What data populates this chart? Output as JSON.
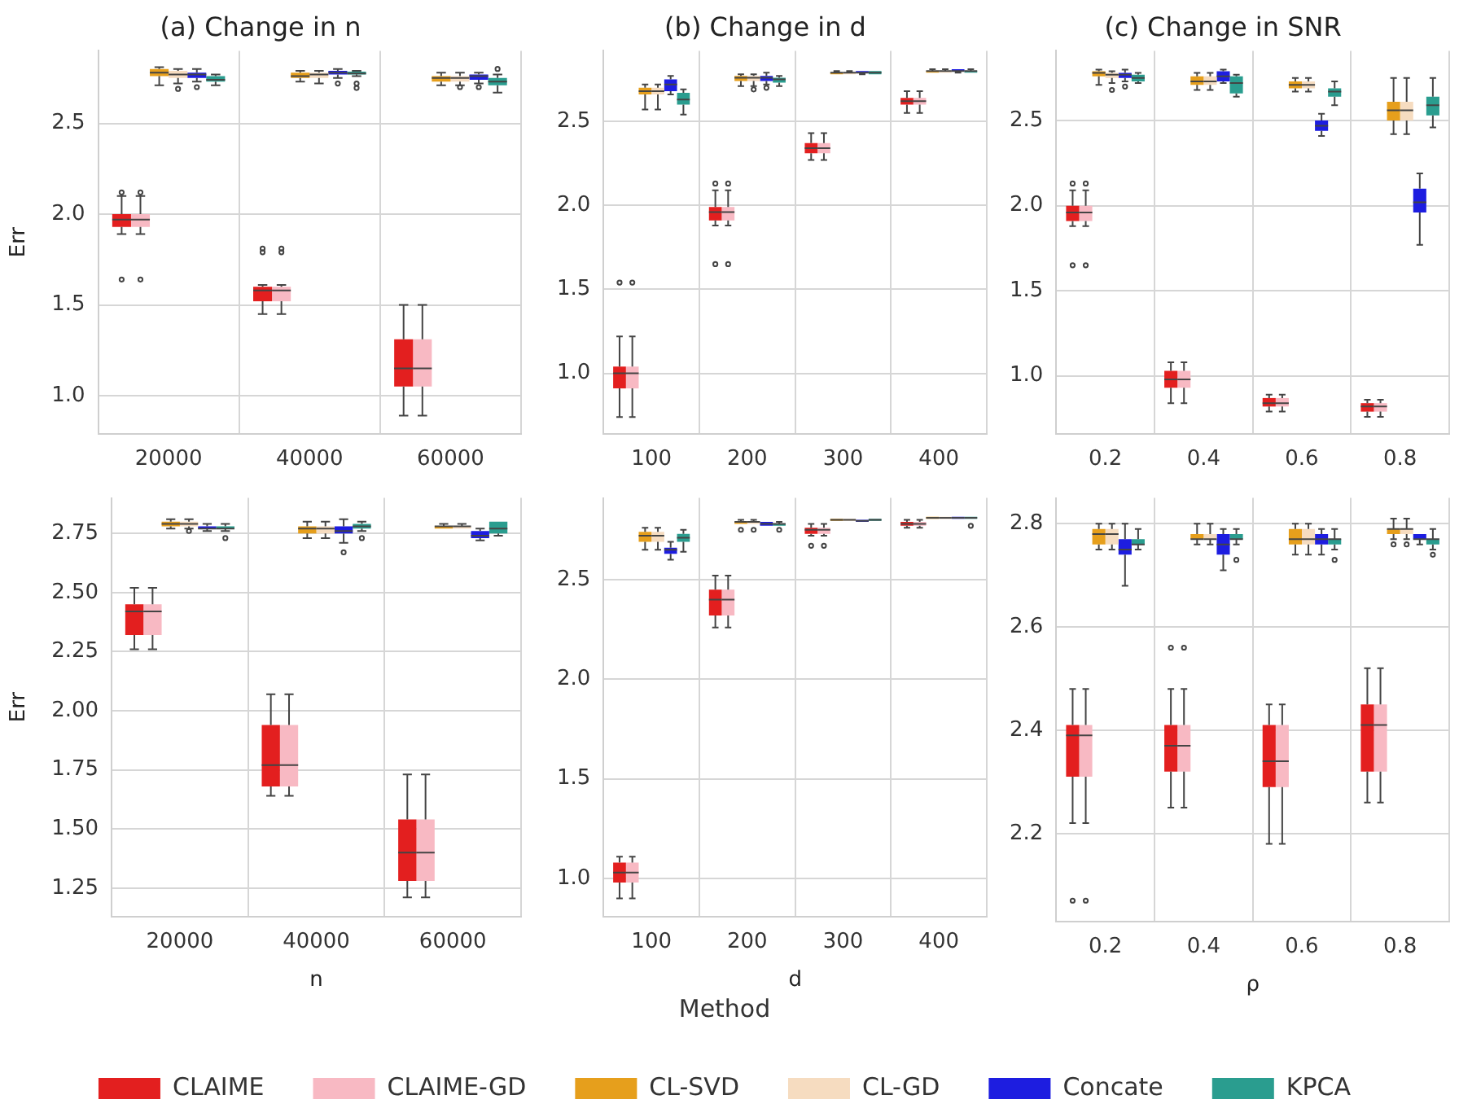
{
  "chart_data": [
    {
      "type": "box",
      "title": "(a) Change in n",
      "ylabel": "Err",
      "categories": [
        "20000",
        "40000",
        "60000"
      ],
      "ylim": [
        0.79,
        2.9
      ],
      "yticks": [
        {
          "value": 1,
          "label": "1.0"
        },
        1.5,
        {
          "value": 2,
          "label": "2.0"
        },
        2.5
      ],
      "grid": true,
      "series": [
        {
          "color": "#e31f1f",
          "boxes": [
            {
              "low": 1.89,
              "q1": 1.93,
              "median": 1.97,
              "q3": 2.0,
              "high": 2.1,
              "outliers": [
                2.12,
                1.64
              ]
            },
            {
              "low": 1.45,
              "q1": 1.52,
              "median": 1.58,
              "q3": 1.6,
              "high": 1.61,
              "outliers": [
                1.81,
                1.79
              ]
            },
            {
              "low": 0.89,
              "q1": 1.05,
              "median": 1.15,
              "q3": 1.31,
              "high": 1.5
            }
          ]
        },
        {
          "color": "#f8b9c3",
          "boxes": [
            {
              "low": 1.89,
              "q1": 1.93,
              "median": 1.97,
              "q3": 2.0,
              "high": 2.1,
              "outliers": [
                2.12,
                1.64
              ]
            },
            {
              "low": 1.45,
              "q1": 1.52,
              "median": 1.58,
              "q3": 1.6,
              "high": 1.61,
              "outliers": [
                1.81,
                1.79
              ]
            },
            {
              "low": 0.89,
              "q1": 1.05,
              "median": 1.15,
              "q3": 1.31,
              "high": 1.5
            }
          ]
        },
        {
          "color": "#e69f1c",
          "boxes": [
            {
              "low": 2.71,
              "q1": 2.76,
              "median": 2.78,
              "q3": 2.8,
              "high": 2.81
            },
            {
              "low": 2.73,
              "q1": 2.75,
              "median": 2.76,
              "q3": 2.78,
              "high": 2.79
            },
            {
              "low": 2.71,
              "q1": 2.73,
              "median": 2.75,
              "q3": 2.76,
              "high": 2.78
            }
          ]
        },
        {
          "color": "#f6dcc0",
          "boxes": [
            {
              "low": 2.72,
              "q1": 2.75,
              "median": 2.77,
              "q3": 2.79,
              "high": 2.8,
              "outliers": [
                2.69
              ]
            },
            {
              "low": 2.72,
              "q1": 2.75,
              "median": 2.77,
              "q3": 2.78,
              "high": 2.79
            },
            {
              "low": 2.71,
              "q1": 2.73,
              "median": 2.75,
              "q3": 2.76,
              "high": 2.78,
              "outliers": [
                2.7
              ]
            }
          ]
        },
        {
          "color": "#1d1de0",
          "boxes": [
            {
              "low": 2.73,
              "q1": 2.75,
              "median": 2.77,
              "q3": 2.78,
              "high": 2.8,
              "outliers": [
                2.7
              ]
            },
            {
              "low": 2.75,
              "q1": 2.77,
              "median": 2.78,
              "q3": 2.79,
              "high": 2.8,
              "outliers": [
                2.72
              ]
            },
            {
              "low": 2.72,
              "q1": 2.74,
              "median": 2.76,
              "q3": 2.77,
              "high": 2.78,
              "outliers": [
                2.7
              ]
            }
          ]
        },
        {
          "color": "#2a9d8f",
          "boxes": [
            {
              "low": 2.71,
              "q1": 2.73,
              "median": 2.74,
              "q3": 2.76,
              "high": 2.77
            },
            {
              "low": 2.76,
              "q1": 2.77,
              "median": 2.775,
              "q3": 2.785,
              "high": 2.79,
              "outliers": [
                2.72,
                2.695
              ]
            },
            {
              "low": 2.67,
              "q1": 2.71,
              "median": 2.73,
              "q3": 2.75,
              "high": 2.77,
              "outliers": [
                2.8
              ]
            }
          ]
        }
      ]
    },
    {
      "type": "box",
      "title": "(b) Change in d",
      "categories": [
        "100",
        "200",
        "300",
        "400"
      ],
      "ylim": [
        0.64,
        2.92
      ],
      "yticks": [
        {
          "value": 1,
          "label": "1.0"
        },
        1.5,
        {
          "value": 2,
          "label": "2.0"
        },
        2.5
      ],
      "grid": true,
      "series": [
        {
          "color": "#e31f1f",
          "boxes": [
            {
              "low": 0.74,
              "q1": 0.91,
              "median": 1.0,
              "q3": 1.04,
              "high": 1.22,
              "outliers": [
                1.54
              ]
            },
            {
              "low": 1.88,
              "q1": 1.91,
              "median": 1.96,
              "q3": 1.99,
              "high": 2.09,
              "outliers": [
                2.13,
                1.65
              ]
            },
            {
              "low": 2.27,
              "q1": 2.31,
              "median": 2.34,
              "q3": 2.37,
              "high": 2.43
            },
            {
              "low": 2.55,
              "q1": 2.6,
              "median": 2.62,
              "q3": 2.64,
              "high": 2.68
            }
          ]
        },
        {
          "color": "#f8b9c3",
          "boxes": [
            {
              "low": 0.74,
              "q1": 0.91,
              "median": 1.0,
              "q3": 1.04,
              "high": 1.22,
              "outliers": [
                1.54
              ]
            },
            {
              "low": 1.88,
              "q1": 1.91,
              "median": 1.96,
              "q3": 1.99,
              "high": 2.09,
              "outliers": [
                2.13,
                1.65
              ]
            },
            {
              "low": 2.27,
              "q1": 2.31,
              "median": 2.34,
              "q3": 2.37,
              "high": 2.43
            },
            {
              "low": 2.55,
              "q1": 2.6,
              "median": 2.62,
              "q3": 2.64,
              "high": 2.68
            }
          ]
        },
        {
          "color": "#e69f1c",
          "boxes": [
            {
              "low": 2.57,
              "q1": 2.66,
              "median": 2.68,
              "q3": 2.7,
              "high": 2.72
            },
            {
              "low": 2.71,
              "q1": 2.74,
              "median": 2.76,
              "q3": 2.77,
              "high": 2.78
            },
            {
              "low": 2.78,
              "q1": 2.78,
              "median": 2.79,
              "q3": 2.79,
              "high": 2.8
            },
            {
              "low": 2.79,
              "q1": 2.79,
              "median": 2.8,
              "q3": 2.8,
              "high": 2.81
            }
          ]
        },
        {
          "color": "#f6dcc0",
          "boxes": [
            {
              "low": 2.57,
              "q1": 2.66,
              "median": 2.68,
              "q3": 2.7,
              "high": 2.72
            },
            {
              "low": 2.71,
              "q1": 2.74,
              "median": 2.76,
              "q3": 2.77,
              "high": 2.78,
              "outliers": [
                2.69
              ]
            },
            {
              "low": 2.78,
              "q1": 2.78,
              "median": 2.79,
              "q3": 2.79,
              "high": 2.8
            },
            {
              "low": 2.79,
              "q1": 2.79,
              "median": 2.8,
              "q3": 2.8,
              "high": 2.81
            }
          ]
        },
        {
          "color": "#1d1de0",
          "boxes": [
            {
              "low": 2.66,
              "q1": 2.68,
              "median": 2.72,
              "q3": 2.75,
              "high": 2.77
            },
            {
              "low": 2.72,
              "q1": 2.74,
              "median": 2.76,
              "q3": 2.77,
              "high": 2.79,
              "outliers": [
                2.7
              ]
            },
            {
              "low": 2.78,
              "q1": 2.79,
              "median": 2.79,
              "q3": 2.8,
              "high": 2.8
            },
            {
              "low": 2.79,
              "q1": 2.8,
              "median": 2.8,
              "q3": 2.81,
              "high": 2.81
            }
          ]
        },
        {
          "color": "#2a9d8f",
          "boxes": [
            {
              "low": 2.54,
              "q1": 2.6,
              "median": 2.63,
              "q3": 2.67,
              "high": 2.69
            },
            {
              "low": 2.71,
              "q1": 2.73,
              "median": 2.75,
              "q3": 2.76,
              "high": 2.77
            },
            {
              "low": 2.78,
              "q1": 2.78,
              "median": 2.79,
              "q3": 2.8,
              "high": 2.8
            },
            {
              "low": 2.79,
              "q1": 2.79,
              "median": 2.8,
              "q3": 2.8,
              "high": 2.81
            }
          ]
        }
      ]
    },
    {
      "type": "box",
      "title": "(c) Change in SNR",
      "categories": [
        "0.2",
        "0.4",
        "0.6",
        "0.8"
      ],
      "ylim": [
        0.66,
        2.91
      ],
      "yticks": [
        {
          "value": 1,
          "label": "1.0"
        },
        1.5,
        {
          "value": 2,
          "label": "2.0"
        },
        2.5
      ],
      "grid": true,
      "series": [
        {
          "color": "#e31f1f",
          "boxes": [
            {
              "low": 1.88,
              "q1": 1.91,
              "median": 1.96,
              "q3": 2.0,
              "high": 2.09,
              "outliers": [
                2.13,
                1.65
              ]
            },
            {
              "low": 0.84,
              "q1": 0.93,
              "median": 0.98,
              "q3": 1.03,
              "high": 1.08
            },
            {
              "low": 0.79,
              "q1": 0.82,
              "median": 0.84,
              "q3": 0.87,
              "high": 0.89
            },
            {
              "low": 0.76,
              "q1": 0.79,
              "median": 0.82,
              "q3": 0.84,
              "high": 0.86
            }
          ]
        },
        {
          "color": "#f8b9c3",
          "boxes": [
            {
              "low": 1.88,
              "q1": 1.91,
              "median": 1.96,
              "q3": 2.0,
              "high": 2.09,
              "outliers": [
                2.13,
                1.65
              ]
            },
            {
              "low": 0.84,
              "q1": 0.93,
              "median": 0.98,
              "q3": 1.03,
              "high": 1.08
            },
            {
              "low": 0.79,
              "q1": 0.82,
              "median": 0.84,
              "q3": 0.87,
              "high": 0.89
            },
            {
              "low": 0.76,
              "q1": 0.79,
              "median": 0.82,
              "q3": 0.84,
              "high": 0.86
            }
          ]
        },
        {
          "color": "#e69f1c",
          "boxes": [
            {
              "low": 2.71,
              "q1": 2.76,
              "median": 2.78,
              "q3": 2.79,
              "high": 2.8
            },
            {
              "low": 2.68,
              "q1": 2.71,
              "median": 2.73,
              "q3": 2.76,
              "high": 2.78
            },
            {
              "low": 2.67,
              "q1": 2.69,
              "median": 2.71,
              "q3": 2.73,
              "high": 2.75
            },
            {
              "low": 2.42,
              "q1": 2.5,
              "median": 2.56,
              "q3": 2.61,
              "high": 2.75
            }
          ]
        },
        {
          "color": "#f6dcc0",
          "boxes": [
            {
              "low": 2.72,
              "q1": 2.75,
              "median": 2.77,
              "q3": 2.78,
              "high": 2.79,
              "outliers": [
                2.68
              ]
            },
            {
              "low": 2.68,
              "q1": 2.71,
              "median": 2.73,
              "q3": 2.76,
              "high": 2.78
            },
            {
              "low": 2.67,
              "q1": 2.69,
              "median": 2.71,
              "q3": 2.73,
              "high": 2.75
            },
            {
              "low": 2.42,
              "q1": 2.5,
              "median": 2.56,
              "q3": 2.61,
              "high": 2.75
            }
          ]
        },
        {
          "color": "#1d1de0",
          "boxes": [
            {
              "low": 2.73,
              "q1": 2.75,
              "median": 2.77,
              "q3": 2.78,
              "high": 2.8,
              "outliers": [
                2.7
              ]
            },
            {
              "low": 2.72,
              "q1": 2.73,
              "median": 2.76,
              "q3": 2.79,
              "high": 2.8
            },
            {
              "low": 2.41,
              "q1": 2.44,
              "median": 2.47,
              "q3": 2.5,
              "high": 2.54
            },
            {
              "low": 1.77,
              "q1": 1.96,
              "median": 2.02,
              "q3": 2.1,
              "high": 2.19
            }
          ]
        },
        {
          "color": "#2a9d8f",
          "boxes": [
            {
              "low": 2.72,
              "q1": 2.73,
              "median": 2.75,
              "q3": 2.77,
              "high": 2.78
            },
            {
              "low": 2.64,
              "q1": 2.66,
              "median": 2.72,
              "q3": 2.76,
              "high": 2.77
            },
            {
              "low": 2.59,
              "q1": 2.64,
              "median": 2.67,
              "q3": 2.69,
              "high": 2.73
            },
            {
              "low": 2.46,
              "q1": 2.53,
              "median": 2.59,
              "q3": 2.64,
              "high": 2.75
            }
          ]
        }
      ]
    },
    {
      "type": "box",
      "xlabel": "n",
      "ylabel": "Err",
      "categories": [
        "20000",
        "40000",
        "60000"
      ],
      "ylim": [
        1.13,
        2.9
      ],
      "yticks": [
        1.25,
        {
          "value": 1.5,
          "label": "1.50"
        },
        1.75,
        {
          "value": 2,
          "label": "2.00"
        },
        2.25,
        {
          "value": 2.5,
          "label": "2.50"
        },
        2.75
      ],
      "grid": true,
      "series": [
        {
          "color": "#e31f1f",
          "boxes": [
            {
              "low": 2.26,
              "q1": 2.32,
              "median": 2.42,
              "q3": 2.45,
              "high": 2.52
            },
            {
              "low": 1.64,
              "q1": 1.68,
              "median": 1.77,
              "q3": 1.94,
              "high": 2.07
            },
            {
              "low": 1.21,
              "q1": 1.28,
              "median": 1.4,
              "q3": 1.54,
              "high": 1.73
            }
          ]
        },
        {
          "color": "#f8b9c3",
          "boxes": [
            {
              "low": 2.26,
              "q1": 2.32,
              "median": 2.42,
              "q3": 2.45,
              "high": 2.52
            },
            {
              "low": 1.64,
              "q1": 1.68,
              "median": 1.77,
              "q3": 1.94,
              "high": 2.07
            },
            {
              "low": 1.21,
              "q1": 1.28,
              "median": 1.4,
              "q3": 1.54,
              "high": 1.73
            }
          ]
        },
        {
          "color": "#e69f1c",
          "boxes": [
            {
              "low": 2.77,
              "q1": 2.78,
              "median": 2.79,
              "q3": 2.8,
              "high": 2.81
            },
            {
              "low": 2.73,
              "q1": 2.75,
              "median": 2.77,
              "q3": 2.78,
              "high": 2.8
            },
            {
              "low": 2.77,
              "q1": 2.77,
              "median": 2.78,
              "q3": 2.78,
              "high": 2.79
            }
          ]
        },
        {
          "color": "#f6dcc0",
          "boxes": [
            {
              "low": 2.77,
              "q1": 2.78,
              "median": 2.79,
              "q3": 2.8,
              "high": 2.81,
              "outliers": [
                2.76
              ]
            },
            {
              "low": 2.73,
              "q1": 2.75,
              "median": 2.77,
              "q3": 2.78,
              "high": 2.8
            },
            {
              "low": 2.77,
              "q1": 2.77,
              "median": 2.78,
              "q3": 2.78,
              "high": 2.79
            }
          ]
        },
        {
          "color": "#1d1de0",
          "boxes": [
            {
              "low": 2.76,
              "q1": 2.77,
              "median": 2.77,
              "q3": 2.78,
              "high": 2.79
            },
            {
              "low": 2.71,
              "q1": 2.75,
              "median": 2.76,
              "q3": 2.78,
              "high": 2.81,
              "outliers": [
                2.67
              ]
            },
            {
              "low": 2.72,
              "q1": 2.73,
              "median": 2.74,
              "q3": 2.76,
              "high": 2.77
            }
          ]
        },
        {
          "color": "#2a9d8f",
          "boxes": [
            {
              "low": 2.76,
              "q1": 2.77,
              "median": 2.77,
              "q3": 2.78,
              "high": 2.79,
              "outliers": [
                2.73
              ]
            },
            {
              "low": 2.76,
              "q1": 2.77,
              "median": 2.78,
              "q3": 2.79,
              "high": 2.8,
              "outliers": [
                2.73
              ]
            },
            {
              "low": 2.74,
              "q1": 2.75,
              "median": 2.77,
              "q3": 2.8,
              "high": 2.8
            }
          ]
        }
      ]
    },
    {
      "type": "box",
      "xlabel": "d",
      "categories": [
        "100",
        "200",
        "300",
        "400"
      ],
      "ylim": [
        0.81,
        2.91
      ],
      "yticks": [
        {
          "value": 1,
          "label": "1.0"
        },
        1.5,
        {
          "value": 2,
          "label": "2.0"
        },
        2.5
      ],
      "grid": true,
      "series": [
        {
          "color": "#e31f1f",
          "boxes": [
            {
              "low": 0.9,
              "q1": 0.98,
              "median": 1.03,
              "q3": 1.08,
              "high": 1.11
            },
            {
              "low": 2.26,
              "q1": 2.32,
              "median": 2.4,
              "q3": 2.45,
              "high": 2.52
            },
            {
              "low": 2.72,
              "q1": 2.73,
              "median": 2.75,
              "q3": 2.76,
              "high": 2.78,
              "outliers": [
                2.67
              ]
            },
            {
              "low": 2.76,
              "q1": 2.77,
              "median": 2.78,
              "q3": 2.79,
              "high": 2.8
            }
          ]
        },
        {
          "color": "#f8b9c3",
          "boxes": [
            {
              "low": 0.9,
              "q1": 0.98,
              "median": 1.03,
              "q3": 1.08,
              "high": 1.11
            },
            {
              "low": 2.26,
              "q1": 2.32,
              "median": 2.4,
              "q3": 2.45,
              "high": 2.52
            },
            {
              "low": 2.72,
              "q1": 2.73,
              "median": 2.75,
              "q3": 2.76,
              "high": 2.78,
              "outliers": [
                2.67
              ]
            },
            {
              "low": 2.76,
              "q1": 2.77,
              "median": 2.78,
              "q3": 2.79,
              "high": 2.8
            }
          ]
        },
        {
          "color": "#e69f1c",
          "boxes": [
            {
              "low": 2.65,
              "q1": 2.69,
              "median": 2.72,
              "q3": 2.74,
              "high": 2.76
            },
            {
              "low": 2.78,
              "q1": 2.78,
              "median": 2.79,
              "q3": 2.79,
              "high": 2.8,
              "outliers": [
                2.75
              ]
            },
            {
              "low": 2.795,
              "q1": 2.795,
              "median": 2.8,
              "q3": 2.805,
              "high": 2.805
            },
            {
              "low": 2.805,
              "q1": 2.805,
              "median": 2.81,
              "q3": 2.815,
              "high": 2.815
            }
          ]
        },
        {
          "color": "#f6dcc0",
          "boxes": [
            {
              "low": 2.65,
              "q1": 2.69,
              "median": 2.72,
              "q3": 2.74,
              "high": 2.76
            },
            {
              "low": 2.78,
              "q1": 2.78,
              "median": 2.79,
              "q3": 2.79,
              "high": 2.8,
              "outliers": [
                2.75
              ]
            },
            {
              "low": 2.795,
              "q1": 2.795,
              "median": 2.8,
              "q3": 2.805,
              "high": 2.805
            },
            {
              "low": 2.805,
              "q1": 2.805,
              "median": 2.81,
              "q3": 2.815,
              "high": 2.815
            }
          ]
        },
        {
          "color": "#1d1de0",
          "boxes": [
            {
              "low": 2.6,
              "q1": 2.63,
              "median": 2.65,
              "q3": 2.66,
              "high": 2.69
            },
            {
              "low": 2.77,
              "q1": 2.77,
              "median": 2.78,
              "q3": 2.79,
              "high": 2.79
            },
            {
              "low": 2.79,
              "q1": 2.79,
              "median": 2.795,
              "q3": 2.8,
              "high": 2.8
            },
            {
              "low": 2.805,
              "q1": 2.805,
              "median": 2.81,
              "q3": 2.815,
              "high": 2.815
            }
          ]
        },
        {
          "color": "#2a9d8f",
          "boxes": [
            {
              "low": 2.64,
              "q1": 2.69,
              "median": 2.71,
              "q3": 2.73,
              "high": 2.75
            },
            {
              "low": 2.77,
              "q1": 2.77,
              "median": 2.78,
              "q3": 2.78,
              "high": 2.79,
              "outliers": [
                2.75
              ]
            },
            {
              "low": 2.795,
              "q1": 2.795,
              "median": 2.8,
              "q3": 2.805,
              "high": 2.805
            },
            {
              "low": 2.805,
              "q1": 2.805,
              "median": 2.81,
              "q3": 2.815,
              "high": 2.815,
              "outliers": [
                2.77
              ]
            }
          ]
        }
      ]
    },
    {
      "type": "box",
      "xlabel": "ρ",
      "categories": [
        "0.2",
        "0.4",
        "0.6",
        "0.8"
      ],
      "ylim": [
        2.03,
        2.85
      ],
      "yticks": [
        2.2,
        2.4,
        2.6,
        2.8
      ],
      "grid": true,
      "legend": "bottom",
      "legend_title": "Method",
      "series": [
        {
          "name": "CLAIME",
          "color": "#e31f1f",
          "boxes": [
            {
              "low": 2.22,
              "q1": 2.31,
              "median": 2.39,
              "q3": 2.41,
              "high": 2.48,
              "outliers": [
                2.07
              ]
            },
            {
              "low": 2.25,
              "q1": 2.32,
              "median": 2.37,
              "q3": 2.41,
              "high": 2.48,
              "outliers": [
                2.56
              ]
            },
            {
              "low": 2.18,
              "q1": 2.29,
              "median": 2.34,
              "q3": 2.41,
              "high": 2.45
            },
            {
              "low": 2.26,
              "q1": 2.32,
              "median": 2.41,
              "q3": 2.45,
              "high": 2.52
            }
          ]
        },
        {
          "name": "CLAIME-GD",
          "color": "#f8b9c3",
          "boxes": [
            {
              "low": 2.22,
              "q1": 2.31,
              "median": 2.39,
              "q3": 2.41,
              "high": 2.48,
              "outliers": [
                2.07
              ]
            },
            {
              "low": 2.25,
              "q1": 2.32,
              "median": 2.37,
              "q3": 2.41,
              "high": 2.48,
              "outliers": [
                2.56
              ]
            },
            {
              "low": 2.18,
              "q1": 2.29,
              "median": 2.34,
              "q3": 2.41,
              "high": 2.45
            },
            {
              "low": 2.26,
              "q1": 2.32,
              "median": 2.41,
              "q3": 2.45,
              "high": 2.52
            }
          ]
        },
        {
          "name": "CL-SVD",
          "color": "#e69f1c",
          "boxes": [
            {
              "low": 2.75,
              "q1": 2.76,
              "median": 2.78,
              "q3": 2.79,
              "high": 2.8
            },
            {
              "low": 2.76,
              "q1": 2.77,
              "median": 2.77,
              "q3": 2.78,
              "high": 2.8
            },
            {
              "low": 2.74,
              "q1": 2.76,
              "median": 2.77,
              "q3": 2.79,
              "high": 2.8
            },
            {
              "low": 2.77,
              "q1": 2.78,
              "median": 2.79,
              "q3": 2.79,
              "high": 2.81,
              "outliers": [
                2.76
              ]
            }
          ]
        },
        {
          "name": "CL-GD",
          "color": "#f6dcc0",
          "boxes": [
            {
              "low": 2.75,
              "q1": 2.76,
              "median": 2.78,
              "q3": 2.79,
              "high": 2.8
            },
            {
              "low": 2.76,
              "q1": 2.77,
              "median": 2.77,
              "q3": 2.78,
              "high": 2.8
            },
            {
              "low": 2.74,
              "q1": 2.76,
              "median": 2.77,
              "q3": 2.79,
              "high": 2.8
            },
            {
              "low": 2.77,
              "q1": 2.78,
              "median": 2.79,
              "q3": 2.79,
              "high": 2.81,
              "outliers": [
                2.76
              ]
            }
          ]
        },
        {
          "name": "Concate",
          "color": "#1d1de0",
          "boxes": [
            {
              "low": 2.68,
              "q1": 2.74,
              "median": 2.75,
              "q3": 2.77,
              "high": 2.8
            },
            {
              "low": 2.71,
              "q1": 2.74,
              "median": 2.76,
              "q3": 2.78,
              "high": 2.79
            },
            {
              "low": 2.74,
              "q1": 2.76,
              "median": 2.77,
              "q3": 2.78,
              "high": 2.79
            },
            {
              "low": 2.76,
              "q1": 2.77,
              "median": 2.77,
              "q3": 2.78,
              "high": 2.78
            }
          ]
        },
        {
          "name": "KPCA",
          "color": "#2a9d8f",
          "boxes": [
            {
              "low": 2.75,
              "q1": 2.76,
              "median": 2.76,
              "q3": 2.77,
              "high": 2.79
            },
            {
              "low": 2.76,
              "q1": 2.77,
              "median": 2.77,
              "q3": 2.78,
              "high": 2.79,
              "outliers": [
                2.73
              ]
            },
            {
              "low": 2.75,
              "q1": 2.76,
              "median": 2.77,
              "q3": 2.77,
              "high": 2.79,
              "outliers": [
                2.73
              ]
            },
            {
              "low": 2.75,
              "q1": 2.76,
              "median": 2.77,
              "q3": 2.77,
              "high": 2.79,
              "outliers": [
                2.74
              ]
            }
          ]
        }
      ]
    }
  ]
}
